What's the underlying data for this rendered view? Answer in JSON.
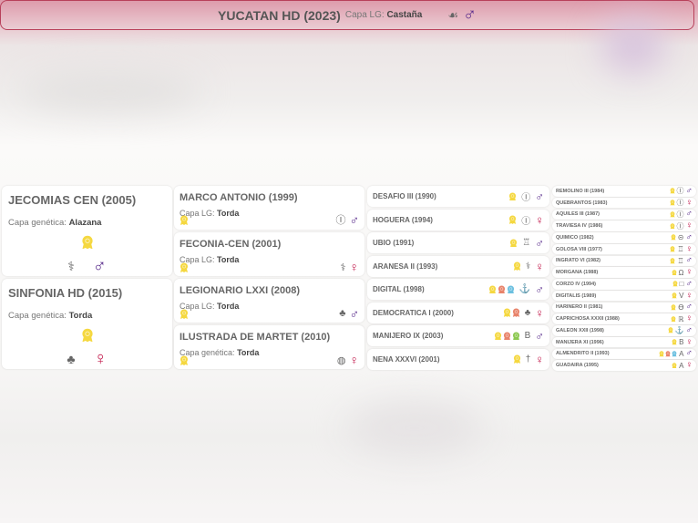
{
  "colors": {
    "male": "#5a2d8c",
    "female": "#c21a4c",
    "border": "#b8405a",
    "medal_yellow": "#f5d840",
    "medal_orange": "#e8836a",
    "medal_blue": "#6cc0e0",
    "medal_green": "#8cc850"
  },
  "subject": {
    "name": "YUCATAN HD (2023)",
    "coat_label": "Capa LG:",
    "coat": "Castaña",
    "brand": "trefoil-brand-icon",
    "sex": "male"
  },
  "gen1": [
    {
      "name": "JECOMIAS CEN (2005)",
      "coat_label": "Capa genética:",
      "coat": "Alazana",
      "medals": [
        "yellow"
      ],
      "brand": "hook-brand-icon",
      "sex": "male"
    },
    {
      "name": "SINFONIA HD (2015)",
      "coat_label": "Capa genética:",
      "coat": "Torda",
      "medals": [
        "yellow"
      ],
      "brand": "trefoil-brand-icon",
      "sex": "female"
    }
  ],
  "gen2": [
    {
      "name": "MARCO ANTONIO (1999)",
      "coat_label": "Capa LG:",
      "coat": "Torda",
      "medals": [
        "yellow"
      ],
      "brand": "circle-brand-icon",
      "sex": "male"
    },
    {
      "name": "FECONIA-CEN (2001)",
      "coat_label": "Capa LG:",
      "coat": "Torda",
      "medals": [
        "yellow"
      ],
      "brand": "hook-brand-icon",
      "sex": "female"
    },
    {
      "name": "LEGIONARIO LXXI (2008)",
      "coat_label": "Capa LG:",
      "coat": "Torda",
      "medals": [
        "yellow"
      ],
      "brand": "trefoil-brand-icon",
      "sex": "male"
    },
    {
      "name": "ILUSTRADA DE MARTET (2010)",
      "coat_label": "Capa genética:",
      "coat": "Torda",
      "medals": [
        "yellow"
      ],
      "brand": "globe-brand-icon",
      "sex": "female"
    }
  ],
  "gen3": [
    {
      "name": "DESAFIO III (1990)",
      "medals": [
        "yellow"
      ],
      "brand": "circle-brand-icon",
      "sex": "male"
    },
    {
      "name": "HOGUERA (1994)",
      "medals": [
        "yellow"
      ],
      "brand": "circle-brand-icon",
      "sex": "female"
    },
    {
      "name": "UBIO (1991)",
      "medals": [
        "yellow"
      ],
      "brand": "crown-brand-icon",
      "sex": "male"
    },
    {
      "name": "ARANESA II (1993)",
      "medals": [
        "yellow"
      ],
      "brand": "hook-brand-icon",
      "sex": "female"
    },
    {
      "name": "DIGITAL (1998)",
      "medals": [
        "yellow",
        "orange",
        "blue"
      ],
      "brand": "anchor-circle-brand-icon",
      "sex": "male"
    },
    {
      "name": "DEMOCRATICA I (2000)",
      "medals": [
        "yellow",
        "orange"
      ],
      "brand": "trefoil-brand-icon",
      "sex": "female"
    },
    {
      "name": "MANIJERO IX (2003)",
      "medals": [
        "yellow",
        "orange",
        "green"
      ],
      "brand": "b-brand-icon",
      "sex": "male"
    },
    {
      "name": "NENA XXXVI (2001)",
      "medals": [
        "yellow"
      ],
      "brand": "dagger-brand-icon",
      "sex": "female"
    }
  ],
  "gen4": [
    {
      "name": "REMOLINO III (1984)",
      "medals": [
        "yellow"
      ],
      "brand": "circle-brand-icon",
      "sex": "male"
    },
    {
      "name": "QUEBRANTOS (1983)",
      "medals": [
        "yellow"
      ],
      "brand": "circle-brand-icon",
      "sex": "female"
    },
    {
      "name": "AQUILES III (1987)",
      "medals": [
        "yellow"
      ],
      "brand": "circle-brand-icon",
      "sex": "male"
    },
    {
      "name": "TRAVIESA IV (1986)",
      "medals": [
        "yellow"
      ],
      "brand": "circle-brand-icon",
      "sex": "female"
    },
    {
      "name": "QUIMICO (1982)",
      "medals": [
        "yellow"
      ],
      "brand": "circle-dash-brand-icon",
      "sex": "male"
    },
    {
      "name": "GOLOSA VIII (1977)",
      "medals": [
        "yellow"
      ],
      "brand": "crown-brand-icon",
      "sex": "female"
    },
    {
      "name": "INGRATO VI (1982)",
      "medals": [
        "yellow"
      ],
      "brand": "tower-brand-icon",
      "sex": "male"
    },
    {
      "name": "MORGANA (1988)",
      "medals": [
        "yellow"
      ],
      "brand": "omega-brand-icon",
      "sex": "female"
    },
    {
      "name": "CORZO IV (1994)",
      "medals": [
        "yellow"
      ],
      "brand": "square-brand-icon",
      "sex": "male"
    },
    {
      "name": "DIGITALIS (1989)",
      "medals": [
        "yellow"
      ],
      "brand": "v-brand-icon",
      "sex": "female"
    },
    {
      "name": "HARINERO II (1981)",
      "medals": [
        "yellow"
      ],
      "brand": "theta-brand-icon",
      "sex": "male"
    },
    {
      "name": "CAPRICHOSA XXXII (1988)",
      "medals": [
        "yellow"
      ],
      "brand": "r-brand-icon",
      "sex": "female"
    },
    {
      "name": "GALEON XXII (1998)",
      "medals": [
        "yellow"
      ],
      "brand": "ship-brand-icon",
      "sex": "male"
    },
    {
      "name": "MANIJERA XI (1996)",
      "medals": [
        "yellow"
      ],
      "brand": "b-brand-icon",
      "sex": "female"
    },
    {
      "name": "ALMENDRITO II (1993)",
      "medals": [
        "yellow",
        "orange",
        "blue"
      ],
      "brand": "a-brand-icon",
      "sex": "male"
    },
    {
      "name": "GUADAIRA (1995)",
      "medals": [
        "yellow"
      ],
      "brand": "a-brand-icon",
      "sex": "female"
    }
  ]
}
